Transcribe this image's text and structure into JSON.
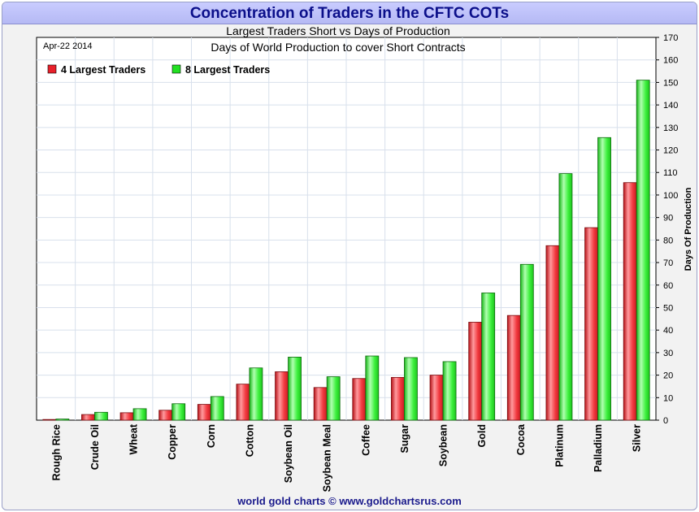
{
  "header": {
    "title": "Concentration of Traders in the CFTC COTs"
  },
  "footer": {
    "credit": "world gold charts © www.goldchartsrus.com"
  },
  "chart_data": {
    "type": "bar",
    "title": "Largest Traders Short vs Days of Production",
    "subtitle": "Days of World Production to cover Short Contracts",
    "date_label": "Apr-22 2014",
    "ylabel": "Days Of Production",
    "xlabel": "",
    "ylim": [
      0,
      170
    ],
    "y_ticks": [
      0,
      10,
      20,
      30,
      40,
      50,
      60,
      70,
      80,
      90,
      100,
      110,
      120,
      130,
      140,
      150,
      160,
      170
    ],
    "y_axis_side": "right",
    "grid": true,
    "legend_position": "top-left",
    "categories": [
      "Rough Rice",
      "Crude Oil",
      "Wheat",
      "Copper",
      "Corn",
      "Cotton",
      "Soybean Oil",
      "Soybean Meal",
      "Coffee",
      "Sugar",
      "Soybean",
      "Gold",
      "Cocoa",
      "Platinum",
      "Palladium",
      "Silver"
    ],
    "series": [
      {
        "name": "4 Largest Traders",
        "color": "#e8202a",
        "values": [
          0.3,
          2.5,
          3.3,
          4.4,
          7,
          16,
          21.5,
          14.5,
          18.5,
          19,
          20,
          43.5,
          46.5,
          77.5,
          85.5,
          105.5
        ]
      },
      {
        "name": "8 Largest Traders",
        "color": "#22e022",
        "values": [
          0.5,
          3.5,
          5.1,
          7.3,
          10.5,
          23.2,
          28,
          19.3,
          28.5,
          27.8,
          26,
          56.5,
          69.2,
          109.5,
          125.5,
          151
        ]
      }
    ]
  }
}
